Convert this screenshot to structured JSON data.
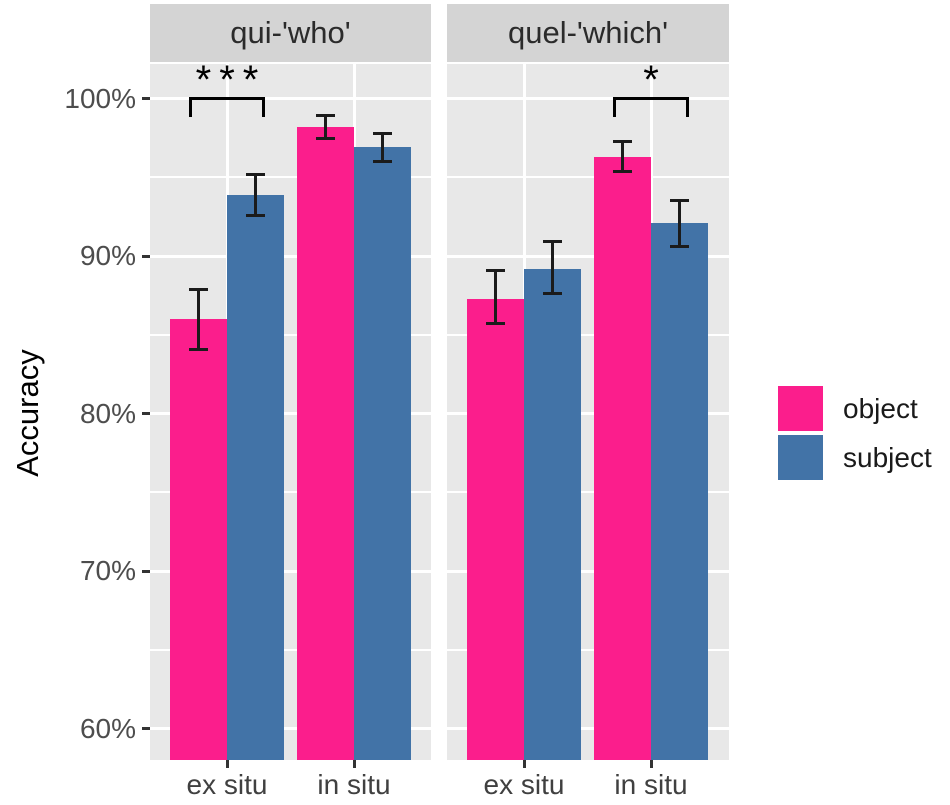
{
  "chart_data": {
    "type": "bar",
    "title": "",
    "xlabel": "",
    "ylabel": "Accuracy",
    "y_axis": {
      "tick_labels": [
        "100%",
        "90%",
        "80%",
        "70%",
        "60%"
      ],
      "tick_values": [
        100,
        90,
        80,
        70,
        60
      ],
      "minor_gridlines": [
        65,
        75,
        85,
        95
      ],
      "visible_range": [
        58.0,
        102.2
      ],
      "unit": "percent"
    },
    "series": [
      {
        "name": "object",
        "color": "#FB1E8C"
      },
      {
        "name": "subject",
        "color": "#4273A7"
      }
    ],
    "facets": [
      {
        "label": "qui-'who'",
        "groups": [
          {
            "category": "ex situ",
            "significance": "***",
            "bars": [
              {
                "series": "object",
                "value": 86.0,
                "ci_low": 84.0,
                "ci_high": 88.0
              },
              {
                "series": "subject",
                "value": 93.9,
                "ci_low": 92.5,
                "ci_high": 95.3
              }
            ]
          },
          {
            "category": "in situ",
            "significance": null,
            "bars": [
              {
                "series": "object",
                "value": 98.2,
                "ci_low": 97.4,
                "ci_high": 99.0
              },
              {
                "series": "subject",
                "value": 96.9,
                "ci_low": 95.9,
                "ci_high": 97.9
              }
            ]
          }
        ]
      },
      {
        "label": "quel-'which'",
        "groups": [
          {
            "category": "ex situ",
            "significance": null,
            "bars": [
              {
                "series": "object",
                "value": 87.3,
                "ci_low": 85.6,
                "ci_high": 89.2
              },
              {
                "series": "subject",
                "value": 89.2,
                "ci_low": 87.5,
                "ci_high": 91.0
              }
            ]
          },
          {
            "category": "in situ",
            "significance": "*",
            "bars": [
              {
                "series": "object",
                "value": 96.3,
                "ci_low": 95.3,
                "ci_high": 97.4
              },
              {
                "series": "subject",
                "value": 92.1,
                "ci_low": 90.5,
                "ci_high": 93.6
              }
            ]
          }
        ]
      }
    ],
    "legend": {
      "position": "right",
      "entries": [
        {
          "label": "object",
          "color": "#FB1E8C"
        },
        {
          "label": "subject",
          "color": "#4273A7"
        }
      ]
    }
  },
  "colors": {
    "panel_background": "#E8E8E8",
    "strip_background": "#D4D4D4",
    "gridline": "#FFFFFF",
    "error_bar": "#1B1B1B",
    "significance": "#000000",
    "axis_tick_text": "#4d4d4d",
    "object": "#FB1E8C",
    "subject": "#4273A7"
  }
}
